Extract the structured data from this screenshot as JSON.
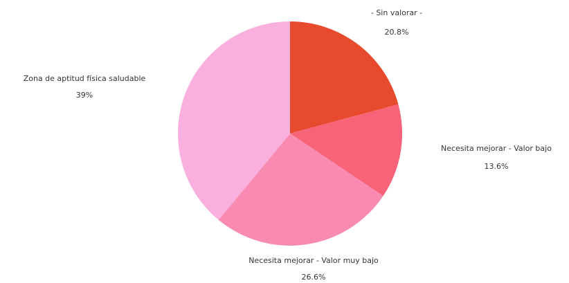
{
  "chart_data": {
    "type": "pie",
    "title": "",
    "slices": [
      {
        "label": "- Sin valorar -",
        "value": 20.8,
        "value_label": "20.8%",
        "color": "#E84A2E"
      },
      {
        "label": "Necesita mejorar - Valor bajo",
        "value": 13.6,
        "value_label": "13.6%",
        "color": "#F7647A"
      },
      {
        "label": "Necesita mejorar - Valor muy bajo",
        "value": 26.6,
        "value_label": "26.6%",
        "color": "#F98BB2"
      },
      {
        "label": "Zona de aptitud física saludable",
        "value": 39,
        "value_label": "39%",
        "color": "#F9B0DE"
      }
    ],
    "legend": "none"
  }
}
